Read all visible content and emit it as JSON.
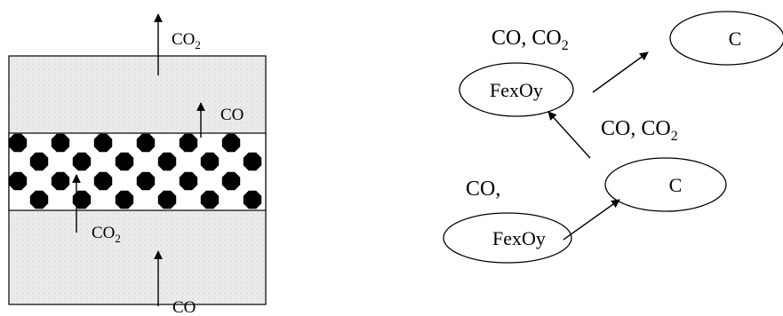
{
  "left_diagram": {
    "top_label": "CO",
    "top_label_sub": "2",
    "middle_right_label": "CO",
    "middle_lower_label": "CO",
    "middle_lower_label_sub": "2",
    "bottom_label": "CO",
    "colors": {
      "box_fill": "#e8e8e8",
      "particle": "#000000"
    }
  },
  "right_diagram": {
    "label_top_left_a": "CO, CO",
    "label_top_left_a_sub": "2",
    "node_fexoy_top": "FexOy",
    "node_c_top": "C",
    "label_mid_a": "CO, CO",
    "label_mid_a_sub": "2",
    "label_lower_left": "CO,",
    "node_c_bottom": "C",
    "node_fexoy_bottom": "FexOy"
  }
}
